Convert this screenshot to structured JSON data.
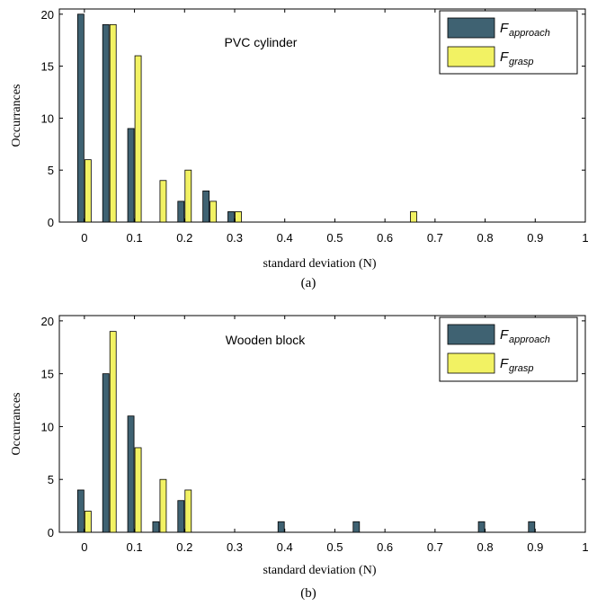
{
  "colors": {
    "approach": "#3f6272",
    "grasp": "#f2f263"
  },
  "chart_data": [
    {
      "type": "bar",
      "panel_label": "(a)",
      "annotation": "PVC cylinder",
      "xlabel": "standard deviation (N)",
      "ylabel": "Occurrances",
      "xlim": [
        -0.05,
        1
      ],
      "ylim": [
        0,
        20.5
      ],
      "xticks": [
        "0",
        "0.1",
        "0.2",
        "0.3",
        "0.4",
        "0.5",
        "0.6",
        "0.7",
        "0.8",
        "0.9",
        "1"
      ],
      "yticks": [
        "0",
        "5",
        "10",
        "15",
        "20"
      ],
      "legend_position": "top-right",
      "series": [
        {
          "name_main": "F",
          "name_sub": "approach",
          "points": [
            [
              0,
              20
            ],
            [
              0.05,
              19
            ],
            [
              0.1,
              9
            ],
            [
              0.2,
              2
            ],
            [
              0.25,
              3
            ],
            [
              0.3,
              1
            ]
          ]
        },
        {
          "name_main": "F",
          "name_sub": "grasp",
          "points": [
            [
              0,
              6
            ],
            [
              0.05,
              19
            ],
            [
              0.1,
              16
            ],
            [
              0.15,
              4
            ],
            [
              0.2,
              5
            ],
            [
              0.25,
              2
            ],
            [
              0.3,
              1
            ],
            [
              0.65,
              1
            ]
          ]
        }
      ]
    },
    {
      "type": "bar",
      "panel_label": "(b)",
      "annotation": "Wooden block",
      "xlabel": "standard deviation (N)",
      "ylabel": "Occurrances",
      "xlim": [
        -0.05,
        1
      ],
      "ylim": [
        0,
        20.5
      ],
      "xticks": [
        "0",
        "0.1",
        "0.2",
        "0.3",
        "0.4",
        "0.5",
        "0.6",
        "0.7",
        "0.8",
        "0.9",
        "1"
      ],
      "yticks": [
        "0",
        "5",
        "10",
        "15",
        "20"
      ],
      "legend_position": "top-right",
      "series": [
        {
          "name_main": "F",
          "name_sub": "approach",
          "points": [
            [
              0,
              4
            ],
            [
              0.05,
              15
            ],
            [
              0.1,
              11
            ],
            [
              0.15,
              1
            ],
            [
              0.2,
              3
            ],
            [
              0.4,
              1
            ],
            [
              0.55,
              1
            ],
            [
              0.8,
              1
            ],
            [
              0.9,
              1
            ]
          ]
        },
        {
          "name_main": "F",
          "name_sub": "grasp",
          "points": [
            [
              0,
              2
            ],
            [
              0.05,
              19
            ],
            [
              0.1,
              8
            ],
            [
              0.15,
              5
            ],
            [
              0.2,
              4
            ]
          ]
        }
      ]
    }
  ]
}
